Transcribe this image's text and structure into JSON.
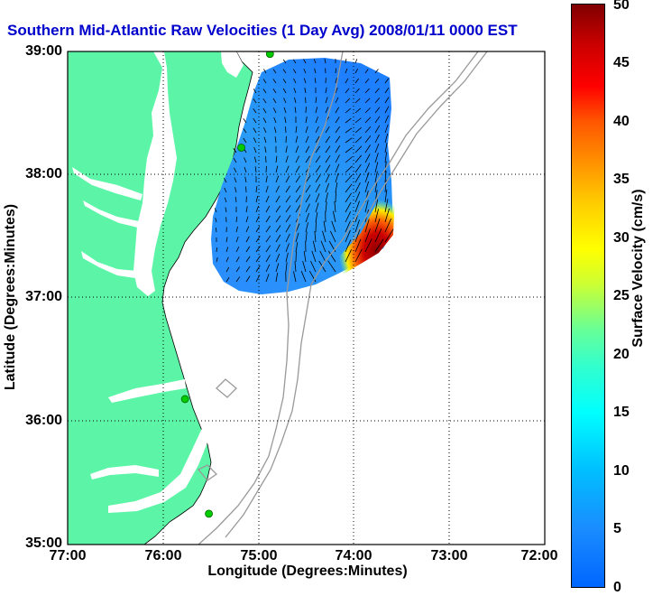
{
  "title": "Southern Mid-Atlantic Raw Velocities (1 Day Avg) 2008/01/11 0000 EST",
  "colors": {
    "title": "#0000cc",
    "land": "#5cf5a8",
    "water": "#ffffff",
    "bathymetry": "#999999",
    "coast": "#000000",
    "stations": "#00cc00"
  },
  "axes": {
    "xlabel": "Longitude (Degrees:Minutes)",
    "ylabel": "Latitude (Degrees:Minutes)",
    "xticks": [
      "77:00",
      "76:00",
      "75:00",
      "74:00",
      "73:00",
      "72:00"
    ],
    "yticks": [
      "39:00",
      "38:00",
      "37:00",
      "36:00",
      "35:00"
    ],
    "lon_range": [
      -77,
      -72
    ],
    "lat_range": [
      35,
      39
    ],
    "grid": "dotted"
  },
  "colorbar": {
    "label": "Surface Velocity (cm/s)",
    "ticks": [
      "50",
      "45",
      "40",
      "35",
      "30",
      "25",
      "20",
      "15",
      "10",
      "5",
      "0"
    ],
    "range": [
      0,
      50
    ],
    "colormap": "jet"
  },
  "stations": [
    {
      "lon": -74.88,
      "lat": 38.98
    },
    {
      "lon": -75.18,
      "lat": 38.22
    },
    {
      "lon": -75.77,
      "lat": 36.18
    },
    {
      "lon": -75.52,
      "lat": 35.25
    }
  ]
}
